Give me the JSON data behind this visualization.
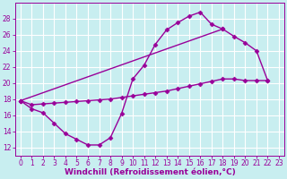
{
  "background_color": "#c8eef0",
  "grid_color": "#ffffff",
  "line_color": "#990099",
  "marker": "D",
  "markersize": 2.5,
  "linewidth": 1.0,
  "xlabel": "Windchill (Refroidissement éolien,°C)",
  "xlabel_fontsize": 6.5,
  "tick_fontsize": 5.5,
  "xlim": [
    -0.5,
    23.5
  ],
  "ylim": [
    11,
    30
  ],
  "yticks": [
    12,
    14,
    16,
    18,
    20,
    22,
    24,
    26,
    28
  ],
  "xticks": [
    0,
    1,
    2,
    3,
    4,
    5,
    6,
    7,
    8,
    9,
    10,
    11,
    12,
    13,
    14,
    15,
    16,
    17,
    18,
    19,
    20,
    21,
    22,
    23
  ],
  "line1_x": [
    0,
    1,
    2,
    3,
    4,
    5,
    6,
    7,
    8,
    9,
    10,
    11,
    12,
    13,
    14,
    15,
    16,
    17,
    18
  ],
  "line1_y": [
    17.8,
    16.8,
    16.3,
    15.0,
    13.7,
    13.0,
    12.3,
    12.3,
    13.2,
    16.2,
    20.5,
    22.2,
    24.8,
    26.6,
    27.5,
    28.3,
    28.8,
    27.3,
    26.7
  ],
  "line2_x": [
    0,
    18,
    19,
    20,
    21,
    22
  ],
  "line2_y": [
    17.8,
    26.7,
    25.8,
    25.0,
    24.0,
    20.3
  ],
  "line3_x": [
    0,
    1,
    2,
    3,
    4,
    5,
    6,
    7,
    8,
    9,
    10,
    11,
    12,
    13,
    14,
    15,
    16,
    17,
    18,
    19,
    20,
    21,
    22
  ],
  "line3_y": [
    17.8,
    17.3,
    17.4,
    17.5,
    17.6,
    17.7,
    17.8,
    17.9,
    18.0,
    18.2,
    18.4,
    18.6,
    18.8,
    19.0,
    19.3,
    19.6,
    19.9,
    20.2,
    20.5,
    20.5,
    20.3,
    20.3,
    20.3
  ]
}
